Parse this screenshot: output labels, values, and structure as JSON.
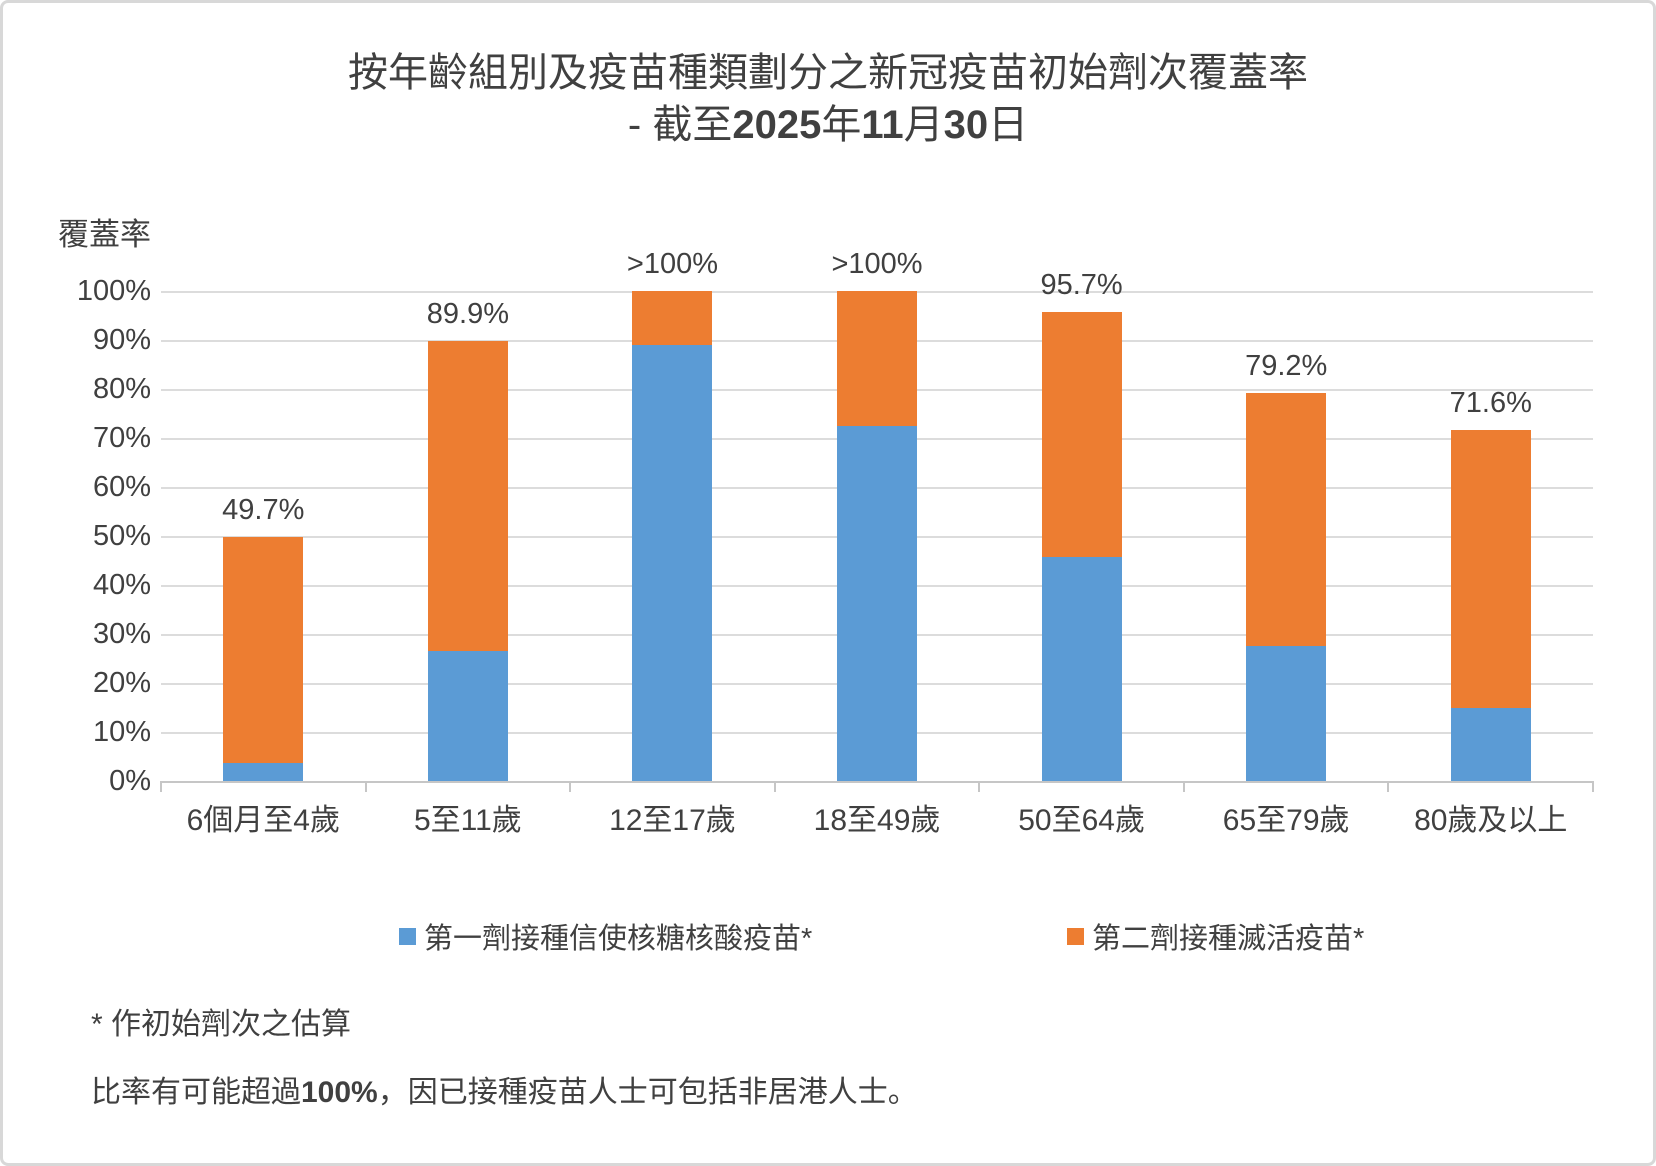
{
  "chart_data": {
    "type": "bar",
    "stacked": true,
    "title": "按年齡組別及疫苗種類劃分之新冠疫苗初始劑次覆蓋率",
    "subtitle_plain": "- 截至2025年11月30日",
    "subtitle_parts": [
      {
        "text": "- 截至",
        "bold": false
      },
      {
        "text": "2025",
        "bold": true
      },
      {
        "text": "年",
        "bold": false
      },
      {
        "text": "11",
        "bold": true
      },
      {
        "text": "月",
        "bold": false
      },
      {
        "text": "30",
        "bold": true
      },
      {
        "text": "日",
        "bold": false
      }
    ],
    "ylabel": "覆蓋率",
    "categories": [
      "6個月至4歲",
      "5至11歲",
      "12至17歲",
      "18至49歲",
      "50至64歲",
      "65至79歲",
      "80歲及以上"
    ],
    "series": [
      {
        "name": "第一劑接種信使核糖核酸疫苗*",
        "color": "#5B9BD5",
        "values": [
          3.7,
          26.5,
          88.9,
          72.5,
          45.7,
          27.6,
          14.9
        ]
      },
      {
        "name": "第二劑接種滅活疫苗*",
        "color": "#ED7D31",
        "values": [
          46.0,
          63.4,
          11.1,
          27.5,
          50.0,
          51.6,
          56.7
        ]
      }
    ],
    "totals_drawn": [
      49.7,
      89.9,
      100,
      100,
      95.7,
      79.2,
      71.6
    ],
    "total_labels": [
      "49.7%",
      "89.9%",
      ">100%",
      ">100%",
      "95.7%",
      "79.2%",
      "71.6%"
    ],
    "ylim": [
      0,
      100
    ],
    "yticks": [
      "100%",
      "90%",
      "80%",
      "70%",
      "60%",
      "50%",
      "40%",
      "30%",
      "20%",
      "10%",
      "0%"
    ],
    "grid": true,
    "legend_position": "bottom",
    "gridline_color": "#DCDCDC",
    "axis_color": "#C6C6C6",
    "text_color": "#404040"
  },
  "footnotes": {
    "line1": "* 作初始劑次之估算",
    "line2_plain": "比率有可能超過100%，因已接種疫苗人士可包括非居港人士。",
    "line2_parts": [
      {
        "text": "比率有可能超過",
        "bold": false
      },
      {
        "text": "100%",
        "bold": true
      },
      {
        "text": "，因已接種疫苗人士可包括非居港人士。",
        "bold": false
      }
    ]
  }
}
